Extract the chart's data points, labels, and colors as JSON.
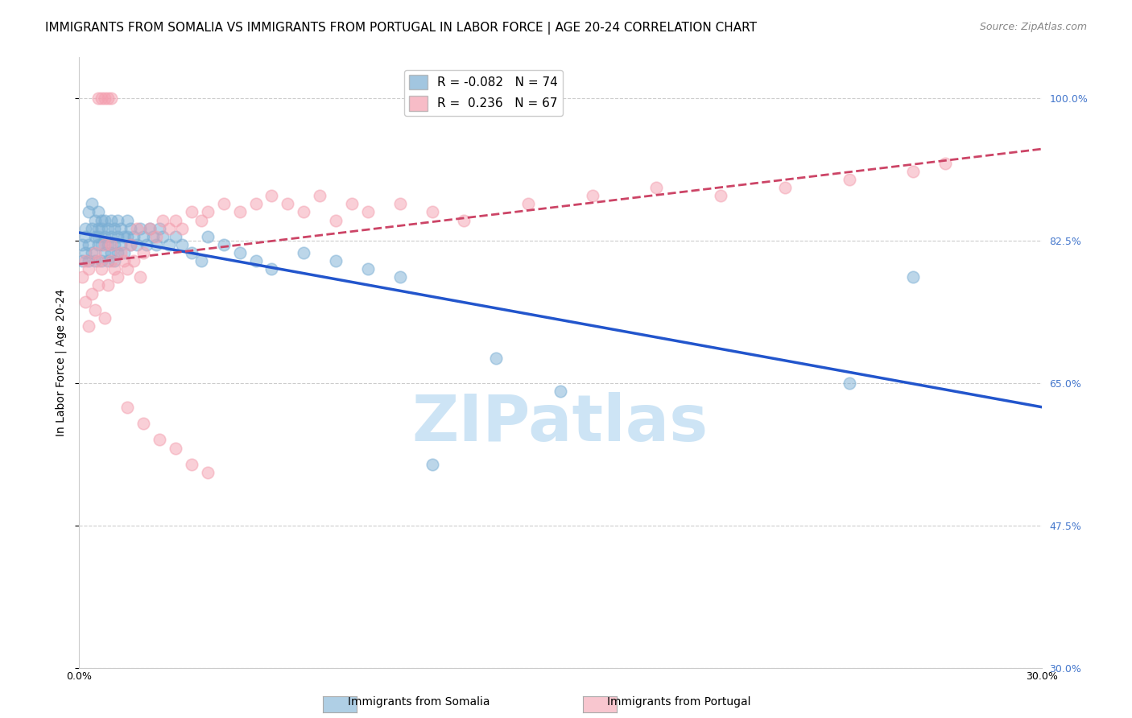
{
  "title": "IMMIGRANTS FROM SOMALIA VS IMMIGRANTS FROM PORTUGAL IN LABOR FORCE | AGE 20-24 CORRELATION CHART",
  "source": "Source: ZipAtlas.com",
  "ylabel": "In Labor Force | Age 20-24",
  "xlim": [
    0.0,
    0.3
  ],
  "ylim": [
    0.3,
    1.05
  ],
  "yticks": [
    0.3,
    0.475,
    0.65,
    0.825,
    1.0
  ],
  "ytick_labels_right": [
    "30.0%",
    "47.5%",
    "65.0%",
    "82.5%",
    "100.0%"
  ],
  "xtick_vals": [
    0.0,
    0.05,
    0.1,
    0.15,
    0.2,
    0.25,
    0.3
  ],
  "xtick_labels": [
    "0.0%",
    "",
    "",
    "",
    "",
    "",
    "30.0%"
  ],
  "legend_blue_label": "R = -0.082   N = 74",
  "legend_pink_label": "R =  0.236   N = 67",
  "blue_color": "#7bafd4",
  "pink_color": "#f4a0b0",
  "blue_line_color": "#2255cc",
  "pink_line_color": "#cc4466",
  "watermark_color": "#cde4f5",
  "title_fontsize": 11,
  "axis_label_fontsize": 10,
  "tick_label_fontsize": 9,
  "right_tick_color": "#4477cc",
  "somalia_x": [
    0.001,
    0.001,
    0.002,
    0.002,
    0.002,
    0.003,
    0.003,
    0.003,
    0.004,
    0.004,
    0.004,
    0.005,
    0.005,
    0.005,
    0.006,
    0.006,
    0.006,
    0.006,
    0.007,
    0.007,
    0.007,
    0.007,
    0.008,
    0.008,
    0.008,
    0.009,
    0.009,
    0.009,
    0.01,
    0.01,
    0.01,
    0.011,
    0.011,
    0.011,
    0.012,
    0.012,
    0.012,
    0.013,
    0.013,
    0.014,
    0.014,
    0.015,
    0.015,
    0.016,
    0.016,
    0.017,
    0.018,
    0.019,
    0.02,
    0.021,
    0.022,
    0.023,
    0.024,
    0.025,
    0.026,
    0.028,
    0.03,
    0.032,
    0.035,
    0.038,
    0.04,
    0.045,
    0.05,
    0.055,
    0.06,
    0.07,
    0.08,
    0.09,
    0.1,
    0.11,
    0.13,
    0.15,
    0.24,
    0.26
  ],
  "somalia_y": [
    0.82,
    0.8,
    0.84,
    0.81,
    0.83,
    0.86,
    0.82,
    0.8,
    0.84,
    0.87,
    0.81,
    0.83,
    0.85,
    0.8,
    0.84,
    0.82,
    0.86,
    0.83,
    0.85,
    0.82,
    0.8,
    0.84,
    0.83,
    0.81,
    0.85,
    0.84,
    0.82,
    0.8,
    0.83,
    0.85,
    0.81,
    0.84,
    0.82,
    0.8,
    0.85,
    0.83,
    0.81,
    0.84,
    0.82,
    0.83,
    0.81,
    0.85,
    0.83,
    0.84,
    0.82,
    0.83,
    0.82,
    0.84,
    0.83,
    0.82,
    0.84,
    0.83,
    0.82,
    0.84,
    0.83,
    0.82,
    0.83,
    0.82,
    0.81,
    0.8,
    0.83,
    0.82,
    0.81,
    0.8,
    0.79,
    0.81,
    0.8,
    0.79,
    0.78,
    0.55,
    0.68,
    0.64,
    0.65,
    0.78
  ],
  "portugal_x": [
    0.001,
    0.002,
    0.002,
    0.003,
    0.003,
    0.004,
    0.005,
    0.005,
    0.006,
    0.006,
    0.007,
    0.008,
    0.008,
    0.009,
    0.01,
    0.01,
    0.011,
    0.012,
    0.013,
    0.014,
    0.015,
    0.016,
    0.017,
    0.018,
    0.019,
    0.02,
    0.022,
    0.024,
    0.026,
    0.028,
    0.03,
    0.032,
    0.035,
    0.038,
    0.04,
    0.045,
    0.05,
    0.055,
    0.06,
    0.065,
    0.07,
    0.075,
    0.08,
    0.085,
    0.09,
    0.1,
    0.11,
    0.12,
    0.14,
    0.16,
    0.18,
    0.2,
    0.22,
    0.24,
    0.26,
    0.27,
    0.015,
    0.02,
    0.025,
    0.03,
    0.035,
    0.04,
    0.006,
    0.007,
    0.008,
    0.009,
    0.01
  ],
  "portugal_y": [
    0.78,
    0.75,
    0.8,
    0.72,
    0.79,
    0.76,
    0.74,
    0.81,
    0.77,
    0.8,
    0.79,
    0.73,
    0.82,
    0.77,
    0.8,
    0.82,
    0.79,
    0.78,
    0.81,
    0.8,
    0.79,
    0.82,
    0.8,
    0.84,
    0.78,
    0.81,
    0.84,
    0.83,
    0.85,
    0.84,
    0.85,
    0.84,
    0.86,
    0.85,
    0.86,
    0.87,
    0.86,
    0.87,
    0.88,
    0.87,
    0.86,
    0.88,
    0.85,
    0.87,
    0.86,
    0.87,
    0.86,
    0.85,
    0.87,
    0.88,
    0.89,
    0.88,
    0.89,
    0.9,
    0.91,
    0.92,
    0.62,
    0.6,
    0.58,
    0.57,
    0.55,
    0.54,
    1.0,
    1.0,
    1.0,
    1.0,
    1.0
  ]
}
